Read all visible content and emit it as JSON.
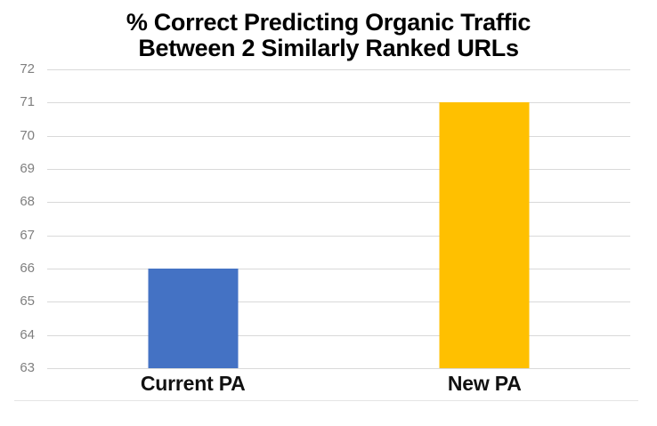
{
  "page": {
    "background_color": "#ffffff"
  },
  "chart_data": {
    "type": "bar",
    "title": "% Correct Predicting Organic Traffic Between 2 Similarly Ranked URLs",
    "title_lines": [
      "% Correct Predicting Organic Traffic",
      "Between 2 Similarly Ranked URLs"
    ],
    "categories": [
      "Current PA",
      "New PA"
    ],
    "values": [
      66,
      71
    ],
    "bar_colors": [
      "#4472C4",
      "#FFC000"
    ],
    "xlabel": "",
    "ylabel": "",
    "ylim": [
      63,
      72
    ],
    "yticks": [
      72,
      71,
      70,
      69,
      68,
      67,
      66,
      65,
      64,
      63
    ],
    "grid": true,
    "legend": "none",
    "gridline_color": "#d9d9d9",
    "tick_label_color": "#7f7f7f",
    "category_label_color": "#111111",
    "title_color": "#000000"
  }
}
